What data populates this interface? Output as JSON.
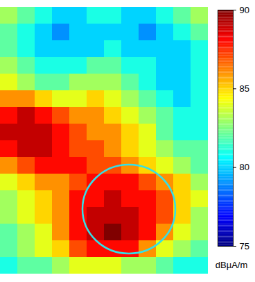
{
  "chart_data": {
    "type": "heatmap",
    "cells": [
      [
        83,
        82,
        81,
        80,
        80,
        81,
        81,
        80,
        80,
        81,
        82,
        83
      ],
      [
        82,
        81,
        80,
        79,
        80,
        80,
        80,
        80,
        79,
        80,
        81,
        82
      ],
      [
        82,
        81,
        80,
        80,
        80,
        80,
        81,
        80,
        80,
        80,
        80,
        81
      ],
      [
        83,
        82,
        81,
        81,
        81,
        82,
        82,
        81,
        81,
        80,
        80,
        81
      ],
      [
        84,
        83,
        82,
        82,
        83,
        83,
        83,
        82,
        81,
        80,
        80,
        81
      ],
      [
        86,
        86,
        85,
        84,
        84,
        85,
        84,
        83,
        82,
        81,
        80,
        81
      ],
      [
        88,
        89,
        88,
        87,
        86,
        86,
        85,
        84,
        83,
        82,
        81,
        81
      ],
      [
        89,
        89,
        89,
        88,
        87,
        86,
        86,
        85,
        84,
        82,
        81,
        81
      ],
      [
        88,
        89,
        89,
        88,
        87,
        87,
        86,
        85,
        84,
        83,
        82,
        82
      ],
      [
        86,
        87,
        88,
        88,
        88,
        87,
        87,
        86,
        85,
        84,
        83,
        82
      ],
      [
        84,
        85,
        86,
        86,
        87,
        88,
        88,
        88,
        87,
        86,
        85,
        83
      ],
      [
        83,
        84,
        85,
        86,
        88,
        88,
        89,
        88,
        88,
        87,
        85,
        84
      ],
      [
        83,
        84,
        85,
        86,
        88,
        89,
        89,
        89,
        88,
        87,
        85,
        83
      ],
      [
        82,
        83,
        84,
        86,
        88,
        89,
        90,
        89,
        88,
        86,
        84,
        83
      ],
      [
        82,
        83,
        84,
        85,
        87,
        88,
        88,
        88,
        86,
        84,
        83,
        82
      ],
      [
        81,
        82,
        82,
        83,
        84,
        84,
        84,
        83,
        83,
        82,
        81,
        81
      ]
    ],
    "colorbar": {
      "range": [
        75,
        90
      ],
      "ticks": [
        75,
        80,
        85,
        90
      ],
      "label": "dBµA/m"
    },
    "tick_labels": false
  }
}
